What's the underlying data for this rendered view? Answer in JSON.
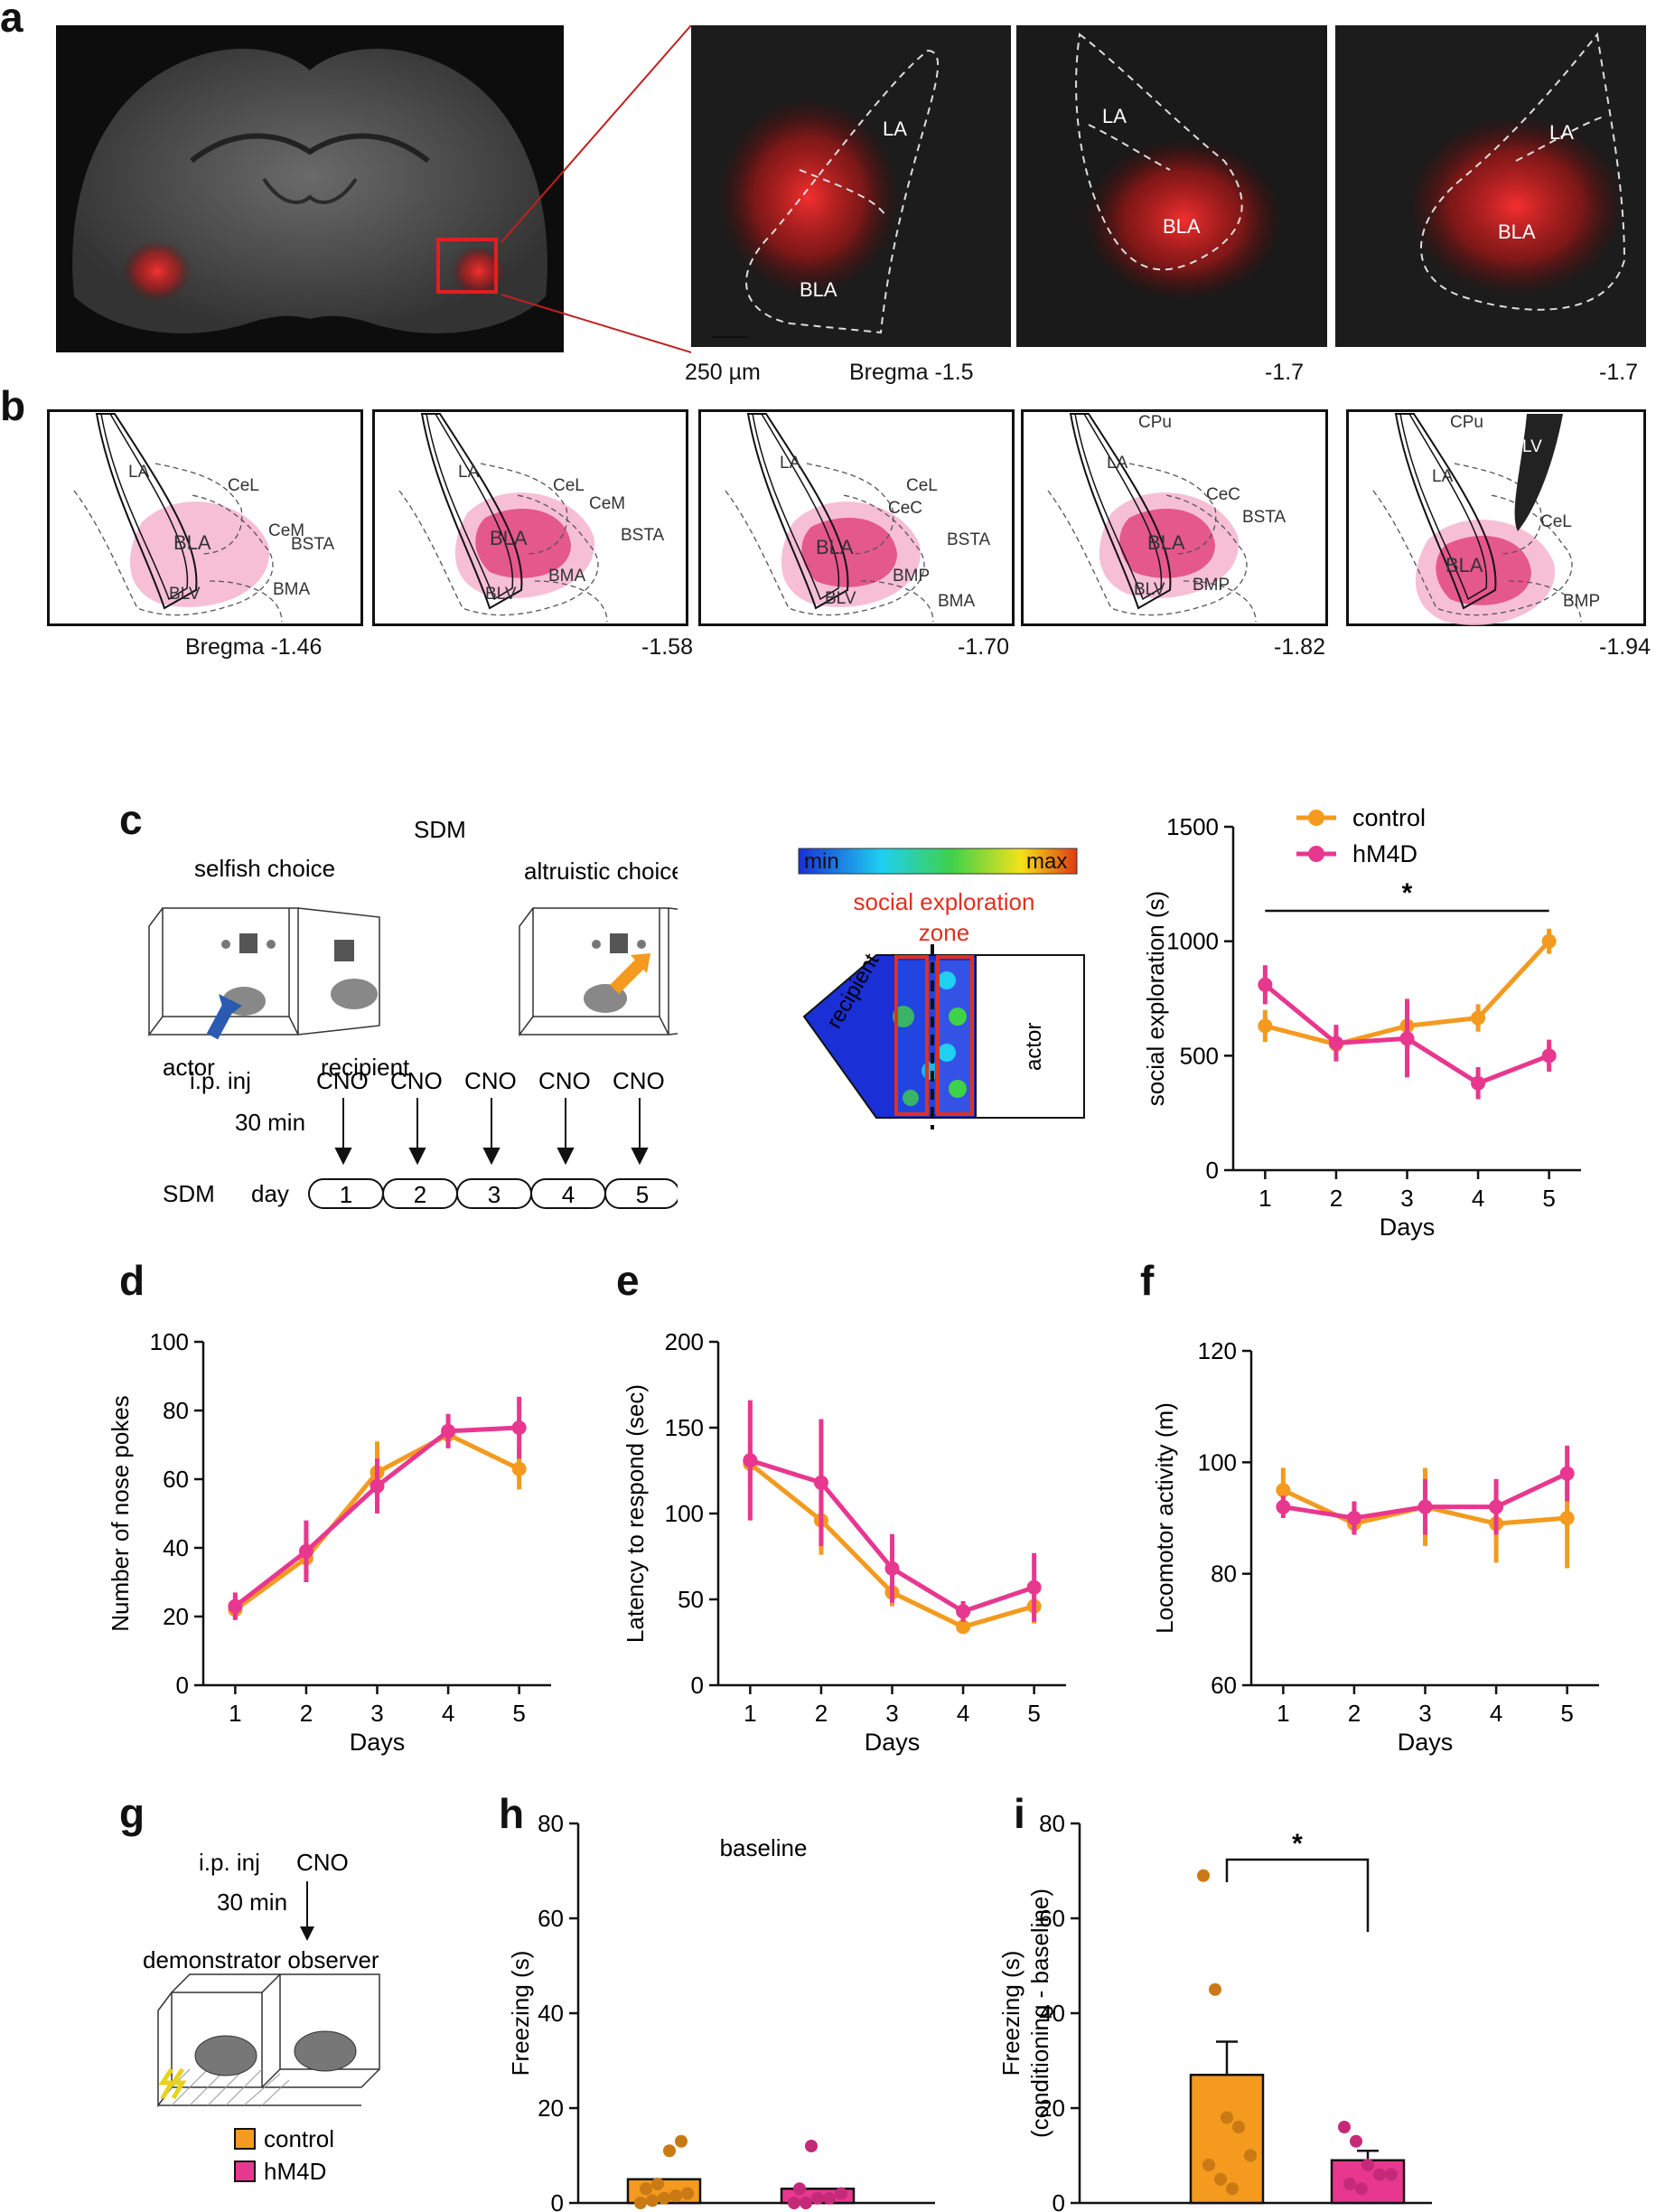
{
  "panels": {
    "a": "a",
    "b": "b",
    "c": "c",
    "d": "d",
    "e": "e",
    "f": "f",
    "g": "g",
    "h": "h",
    "i": "i"
  },
  "panel_a": {
    "labels_1": [
      "LA",
      "BLA"
    ],
    "labels_2": [
      "LA",
      "BLA"
    ],
    "labels_3": [
      "LA",
      "BLA"
    ],
    "scale_bar": "250 µm",
    "bregma": [
      "Bregma -1.5",
      "-1.7",
      "-1.7"
    ]
  },
  "panel_b": {
    "bregma": [
      "Bregma -1.46",
      "-1.58",
      "-1.70",
      "-1.82",
      "-1.94"
    ],
    "atlas_labels": [
      [
        "LA",
        "CeL",
        "CeM",
        "BLA",
        "BSTA",
        "BMA",
        "BLV"
      ],
      [
        "LA",
        "CeL",
        "CeM",
        "BLA",
        "BSTA",
        "BMA",
        "BLV"
      ],
      [
        "LA",
        "CeL",
        "CeC",
        "BLA",
        "BSTA",
        "BMP",
        "BLV",
        "BMA"
      ],
      [
        "CPu",
        "LA",
        "CeC",
        "BSTA",
        "BLA",
        "BLV",
        "BMP"
      ],
      [
        "CPu",
        "LV",
        "LA",
        "CeL",
        "BLA",
        "BMP"
      ]
    ]
  },
  "panel_c": {
    "sdm": "SDM",
    "selfish": "selfish choice",
    "altruistic": "altruistic choice",
    "actor": "actor",
    "recipient": "recipient",
    "ip_inj": "i.p. inj",
    "cno": "CNO",
    "min30": "30 min",
    "sdm2": "SDM",
    "day": "day",
    "days": [
      "1",
      "2",
      "3",
      "4",
      "5"
    ],
    "heat_min": "min",
    "heat_max": "max",
    "zone": "social exploration",
    "zone2": "zone",
    "heat_recipient": "recipient",
    "heat_actor": "actor"
  },
  "panel_g": {
    "ip_inj": "i.p. inj",
    "cno": "CNO",
    "min30": "30 min",
    "demo_obs": "demonstrator observer",
    "legend": [
      "control",
      "hM4D"
    ]
  },
  "colors": {
    "control": "#F39A1F",
    "hM4D": "#E8378F",
    "control_dot": "#C97A14",
    "hM4D_dot": "#C42A78",
    "axis": "#111111",
    "heat_red": "#e03020"
  },
  "chart_data": [
    {
      "id": "c",
      "type": "line",
      "x": [
        1,
        2,
        3,
        4,
        5
      ],
      "xlabel": "Days",
      "ylabel": "social exploration (s)",
      "ylim": [
        0,
        1500
      ],
      "yticks": [
        0,
        500,
        1000,
        1500
      ],
      "legend": "top-left",
      "annotation": "*",
      "series": [
        {
          "name": "control",
          "values": [
            630,
            550,
            630,
            665,
            1000
          ],
          "err": [
            70,
            60,
            120,
            60,
            55
          ]
        },
        {
          "name": "hM4D",
          "values": [
            810,
            555,
            575,
            380,
            500
          ],
          "err": [
            85,
            80,
            170,
            70,
            70
          ]
        }
      ]
    },
    {
      "id": "d",
      "type": "line",
      "x": [
        1,
        2,
        3,
        4,
        5
      ],
      "xlabel": "Days",
      "ylabel": "Number of nose pokes",
      "ylim": [
        0,
        100
      ],
      "yticks": [
        0,
        20,
        40,
        60,
        80,
        100
      ],
      "series": [
        {
          "name": "control",
          "values": [
            22,
            37,
            62,
            73,
            63
          ],
          "err": [
            3,
            7,
            9,
            4,
            6
          ]
        },
        {
          "name": "hM4D",
          "values": [
            23,
            39,
            58,
            74,
            75
          ],
          "err": [
            4,
            9,
            8,
            5,
            9
          ]
        }
      ]
    },
    {
      "id": "e",
      "type": "line",
      "x": [
        1,
        2,
        3,
        4,
        5
      ],
      "xlabel": "Days",
      "ylabel": "Latency to respond  (sec)",
      "ylim": [
        0,
        200
      ],
      "yticks": [
        0,
        50,
        100,
        150,
        200
      ],
      "series": [
        {
          "name": "control",
          "values": [
            129,
            96,
            54,
            34,
            46
          ],
          "err": [
            10,
            20,
            8,
            3,
            10
          ]
        },
        {
          "name": "hM4D",
          "values": [
            131,
            118,
            68,
            43,
            57
          ],
          "err": [
            35,
            37,
            20,
            6,
            20
          ]
        }
      ]
    },
    {
      "id": "f",
      "type": "line",
      "x": [
        1,
        2,
        3,
        4,
        5
      ],
      "xlabel": "Days",
      "ylabel": "Locomotor activity (m)",
      "ylim": [
        60,
        120
      ],
      "yticks": [
        60,
        80,
        100,
        120
      ],
      "series": [
        {
          "name": "control",
          "values": [
            95,
            89,
            92,
            89,
            90
          ],
          "err": [
            4,
            2,
            7,
            7,
            9
          ]
        },
        {
          "name": "hM4D",
          "values": [
            92,
            90,
            92,
            92,
            98
          ],
          "err": [
            2,
            3,
            5,
            5,
            5
          ]
        }
      ]
    },
    {
      "id": "h",
      "type": "bar",
      "categories": [
        "control",
        "hM4D"
      ],
      "values": [
        5,
        3
      ],
      "ylabel": "Freezing (s)",
      "title": "baseline",
      "ylim": [
        0,
        80
      ],
      "yticks": [
        0,
        20,
        40,
        60,
        80
      ],
      "points": [
        [
          0,
          0.5,
          1,
          1.5,
          2,
          3,
          4,
          11,
          13
        ],
        [
          0,
          0,
          1,
          1,
          2,
          3,
          12
        ]
      ]
    },
    {
      "id": "i",
      "type": "bar",
      "categories": [
        "control",
        "hM4D"
      ],
      "values": [
        27,
        9
      ],
      "err": [
        7,
        2
      ],
      "ylabel": "Freezing (s)",
      "ylabel2": "(conditioning - baseline)",
      "ylim": [
        0,
        80
      ],
      "yticks": [
        0,
        20,
        40,
        60,
        80
      ],
      "annotation": "*",
      "points": [
        [
          69,
          45,
          18,
          16,
          10,
          8,
          5,
          3
        ],
        [
          16,
          13,
          8,
          6,
          6,
          4,
          3
        ]
      ]
    }
  ]
}
